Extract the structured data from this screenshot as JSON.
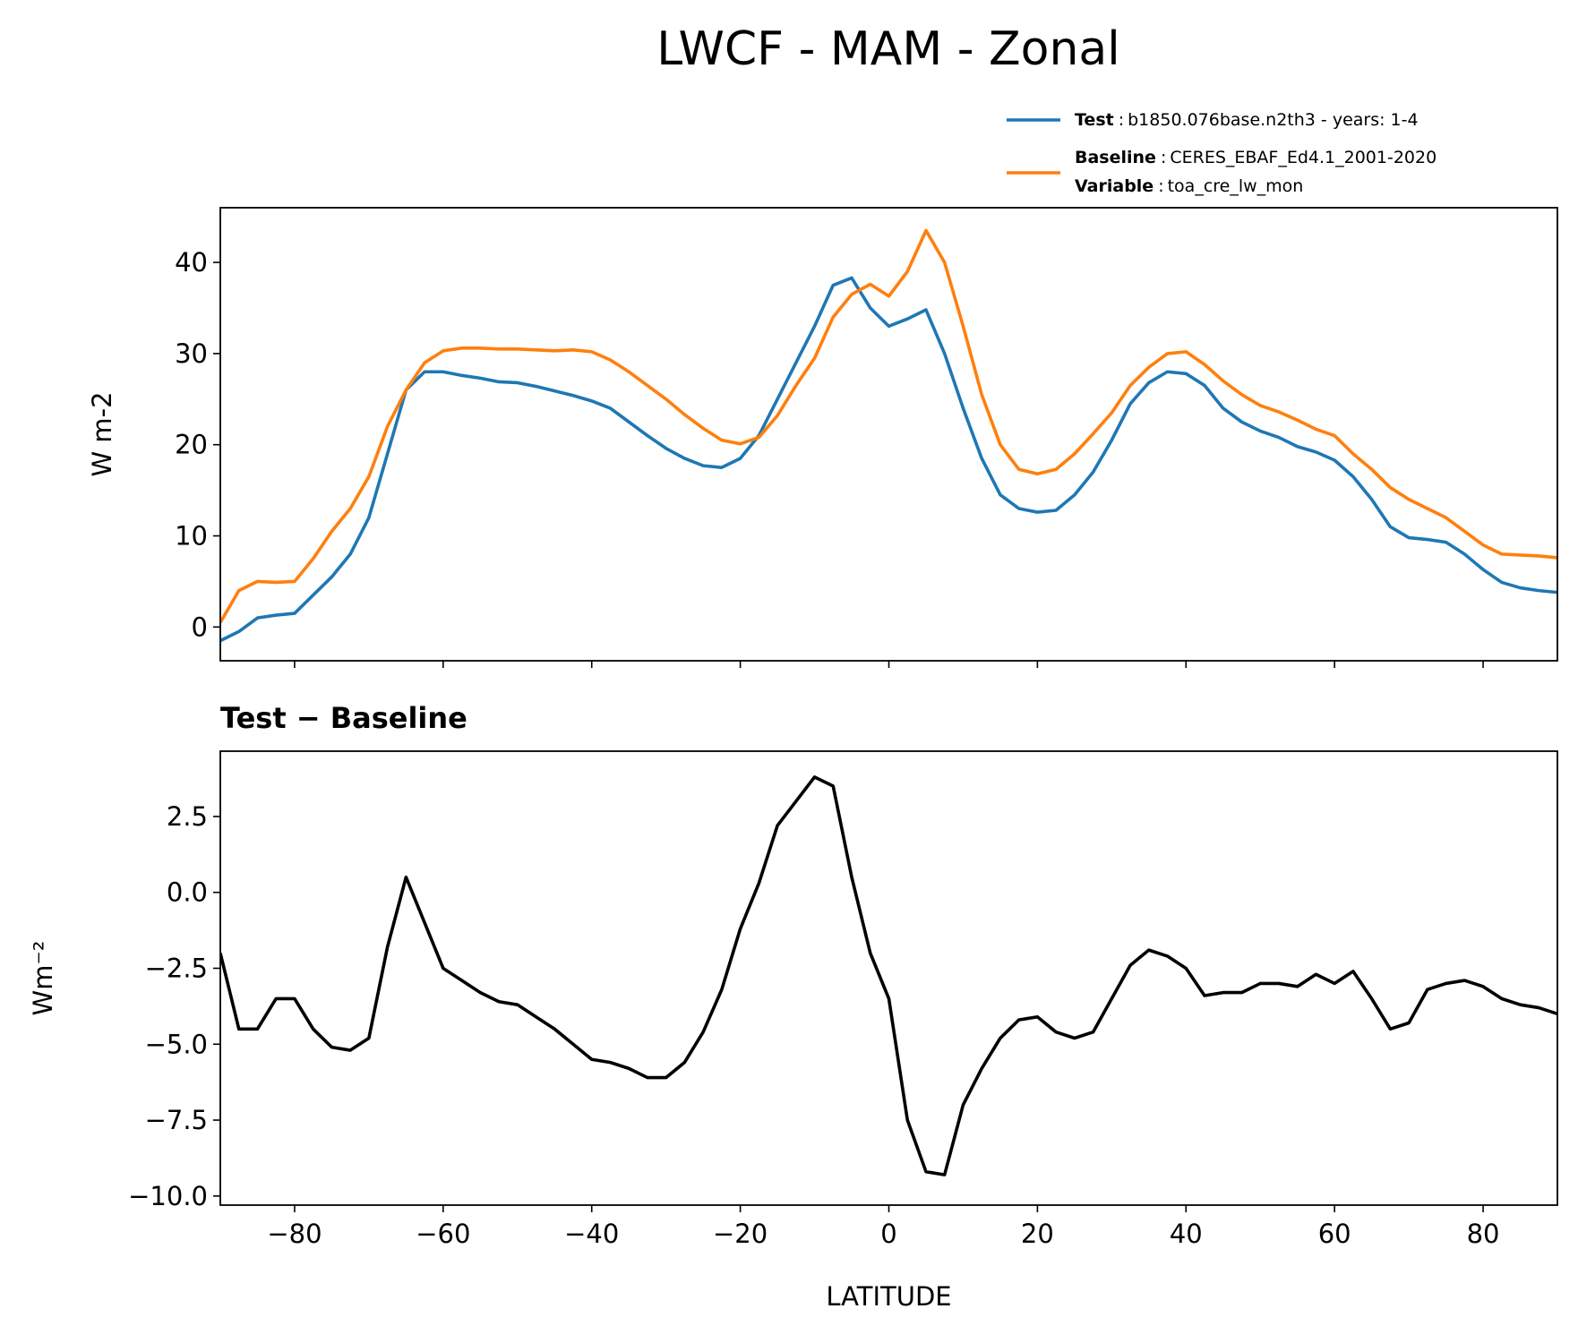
{
  "title": "LWCF - MAM - Zonal",
  "chart_data": [
    {
      "type": "line",
      "ylabel": "W m-2",
      "legend_separator": ":",
      "legend_extra": {
        "name": "Variable",
        "label": "toa_cre_lw_mon"
      },
      "x": [
        -90,
        -87.5,
        -85,
        -82.5,
        -80,
        -77.5,
        -75,
        -72.5,
        -70,
        -67.5,
        -65,
        -62.5,
        -60,
        -57.5,
        -55,
        -52.5,
        -50,
        -47.5,
        -45,
        -42.5,
        -40,
        -37.5,
        -35,
        -32.5,
        -30,
        -27.5,
        -25,
        -22.5,
        -20,
        -17.5,
        -15,
        -12.5,
        -10,
        -7.5,
        -5,
        -2.5,
        0,
        2.5,
        5,
        7.5,
        10,
        12.5,
        15,
        17.5,
        20,
        22.5,
        25,
        27.5,
        30,
        32.5,
        35,
        37.5,
        40,
        42.5,
        45,
        47.5,
        50,
        52.5,
        55,
        57.5,
        60,
        62.5,
        65,
        67.5,
        70,
        72.5,
        75,
        77.5,
        80,
        82.5,
        85,
        87.5,
        90
      ],
      "series": [
        {
          "name": "Test",
          "label": "b1850.076base.n2th3 - years: 1-4",
          "color": "#1f77b4",
          "values": [
            -1.5,
            -0.5,
            1.0,
            1.3,
            1.5,
            3.5,
            5.5,
            8,
            12,
            19,
            26,
            28,
            28,
            27.6,
            27.3,
            26.9,
            26.8,
            26.4,
            25.9,
            25.4,
            24.8,
            24,
            22.5,
            21,
            19.6,
            18.5,
            17.7,
            17.5,
            18.5,
            21,
            25,
            29,
            33,
            37.5,
            38.3,
            35,
            33,
            33.8,
            34.8,
            30,
            24,
            18.5,
            14.5,
            13.0,
            12.6,
            12.8,
            14.5,
            17,
            20.5,
            24.5,
            26.8,
            28.0,
            27.8,
            26.5,
            24,
            22.5,
            21.5,
            20.8,
            19.8,
            19.2,
            18.3,
            16.5,
            14,
            11,
            9.8,
            9.6,
            9.3,
            8,
            6.3,
            4.9,
            4.3,
            4.0,
            3.8
          ]
        },
        {
          "name": "Baseline",
          "label": "CERES_EBAF_Ed4.1_2001-2020",
          "color": "#ff7f0e",
          "values": [
            0.5,
            4,
            5,
            4.9,
            5,
            7.5,
            10.5,
            13,
            16.5,
            22,
            26,
            29,
            30.3,
            30.6,
            30.6,
            30.5,
            30.5,
            30.4,
            30.3,
            30.4,
            30.2,
            29.3,
            28,
            26.5,
            25,
            23.3,
            21.8,
            20.5,
            20.1,
            20.8,
            23.2,
            26.5,
            29.5,
            34,
            36.5,
            37.6,
            36.3,
            39,
            43.5,
            40,
            33,
            25.5,
            20,
            17.3,
            16.8,
            17.3,
            19,
            21.2,
            23.5,
            26.5,
            28.5,
            30.0,
            30.2,
            28.8,
            27,
            25.5,
            24.3,
            23.6,
            22.7,
            21.7,
            21,
            19,
            17.3,
            15.3,
            14,
            13,
            12,
            10.5,
            9,
            8,
            7.9,
            7.8,
            7.6
          ]
        }
      ],
      "xlim": [
        -90,
        90
      ],
      "ylim": [
        -3.7,
        46
      ],
      "xticks": [
        -80,
        -60,
        -40,
        -20,
        0,
        20,
        40,
        60,
        80
      ],
      "xtick_labels": false,
      "yticks": [
        0,
        10,
        20,
        30,
        40
      ]
    },
    {
      "type": "line",
      "subtitle": "Test − Baseline",
      "ylabel": "Wm⁻²",
      "xlabel": "LATITUDE",
      "x": [
        -90,
        -87.5,
        -85,
        -82.5,
        -80,
        -77.5,
        -75,
        -72.5,
        -70,
        -67.5,
        -65,
        -62.5,
        -60,
        -57.5,
        -55,
        -52.5,
        -50,
        -47.5,
        -45,
        -42.5,
        -40,
        -37.5,
        -35,
        -32.5,
        -30,
        -27.5,
        -25,
        -22.5,
        -20,
        -17.5,
        -15,
        -12.5,
        -10,
        -7.5,
        -5,
        -2.5,
        0,
        2.5,
        5,
        7.5,
        10,
        12.5,
        15,
        17.5,
        20,
        22.5,
        25,
        27.5,
        30,
        32.5,
        35,
        37.5,
        40,
        42.5,
        45,
        47.5,
        50,
        52.5,
        55,
        57.5,
        60,
        62.5,
        65,
        67.5,
        70,
        72.5,
        75,
        77.5,
        80,
        82.5,
        85,
        87.5,
        90
      ],
      "series": [
        {
          "color": "#000000",
          "values": [
            -2.0,
            -4.5,
            -4.5,
            -3.5,
            -3.5,
            -4.5,
            -5.1,
            -5.2,
            -4.8,
            -1.8,
            0.5,
            -1,
            -2.5,
            -2.9,
            -3.3,
            -3.6,
            -3.7,
            -4.1,
            -4.5,
            -5.0,
            -5.5,
            -5.6,
            -5.8,
            -6.1,
            -6.1,
            -5.6,
            -4.6,
            -3.2,
            -1.2,
            0.3,
            2.2,
            3.0,
            3.8,
            3.5,
            0.5,
            -2.0,
            -3.5,
            -7.5,
            -9.2,
            -9.3,
            -7.0,
            -5.8,
            -4.8,
            -4.2,
            -4.1,
            -4.6,
            -4.8,
            -4.6,
            -3.5,
            -2.4,
            -1.9,
            -2.1,
            -2.5,
            -3.4,
            -3.3,
            -3.3,
            -3.0,
            -3.0,
            -3.1,
            -2.7,
            -3.0,
            -2.6,
            -3.5,
            -4.5,
            -4.3,
            -3.2,
            -3.0,
            -2.9,
            -3.1,
            -3.5,
            -3.7,
            -3.8,
            -4.0
          ]
        }
      ],
      "xlim": [
        -90,
        90
      ],
      "ylim": [
        -10.3,
        4.65
      ],
      "xticks": [
        {
          "value": -80,
          "label": "−80"
        },
        {
          "value": -60,
          "label": "−60"
        },
        {
          "value": -40,
          "label": "−40"
        },
        {
          "value": -20,
          "label": "−20"
        },
        0,
        20,
        40,
        60,
        80
      ],
      "xtick_labels": true,
      "yticks": [
        2.5,
        {
          "value": 0,
          "label": "0.0"
        },
        {
          "value": -2.5,
          "label": "−2.5"
        },
        {
          "value": -5,
          "label": "−5.0"
        },
        {
          "value": -7.5,
          "label": "−7.5"
        },
        {
          "value": -10,
          "label": "−10.0"
        }
      ]
    }
  ]
}
